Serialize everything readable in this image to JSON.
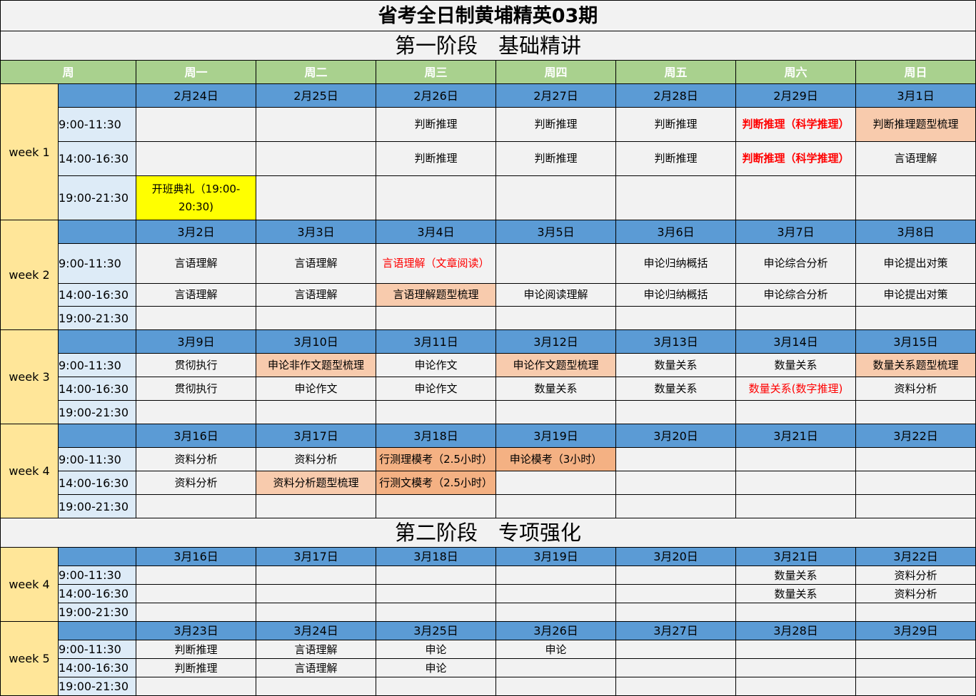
{
  "title": "省考全日制黄埔精英03期",
  "header": {
    "week_col": "周",
    "days": [
      "周一",
      "周二",
      "周三",
      "周四",
      "周五",
      "周六",
      "周日"
    ]
  },
  "phases": [
    {
      "title": "第一阶段　基础精讲",
      "weeks": [
        {
          "label": "week  1",
          "dates": [
            "2月24日",
            "2月25日",
            "2月26日",
            "2月27日",
            "2月28日",
            "2月29日",
            "3月1日"
          ],
          "slots": [
            {
              "time": "9:00-11:30",
              "cells": [
                {
                  "t": ""
                },
                {
                  "t": ""
                },
                {
                  "t": "判断推理"
                },
                {
                  "t": "判断推理"
                },
                {
                  "t": "判断推理"
                },
                {
                  "t": "判断推理（科学推理）",
                  "s": "rb"
                },
                {
                  "t": "判断推理题型梳理",
                  "s": "p"
                }
              ]
            },
            {
              "time": "14:00-16:30",
              "cells": [
                {
                  "t": ""
                },
                {
                  "t": ""
                },
                {
                  "t": "判断推理"
                },
                {
                  "t": "判断推理"
                },
                {
                  "t": "判断推理"
                },
                {
                  "t": "判断推理（科学推理）",
                  "s": "rb"
                },
                {
                  "t": "言语理解"
                }
              ]
            },
            {
              "time": "19:00-21:30",
              "cells": [
                {
                  "t": "开班典礼（19:00-20:30)",
                  "s": "y"
                },
                {
                  "t": ""
                },
                {
                  "t": ""
                },
                {
                  "t": ""
                },
                {
                  "t": ""
                },
                {
                  "t": ""
                },
                {
                  "t": ""
                }
              ]
            }
          ]
        },
        {
          "label": "week  2",
          "dates": [
            "3月2日",
            "3月3日",
            "3月4日",
            "3月5日",
            "3月6日",
            "3月7日",
            "3月8日"
          ],
          "slots": [
            {
              "time": "9:00-11:30",
              "cells": [
                {
                  "t": "言语理解"
                },
                {
                  "t": "言语理解"
                },
                {
                  "t": "言语理解（文章阅读）",
                  "s": "r"
                },
                {
                  "t": ""
                },
                {
                  "t": "申论归纳概括"
                },
                {
                  "t": "申论综合分析"
                },
                {
                  "t": "申论提出对策"
                }
              ]
            },
            {
              "time": "14:00-16:30",
              "cells": [
                {
                  "t": "言语理解"
                },
                {
                  "t": "言语理解"
                },
                {
                  "t": "言语理解题型梳理",
                  "s": "p"
                },
                {
                  "t": "申论阅读理解"
                },
                {
                  "t": "申论归纳概括"
                },
                {
                  "t": "申论综合分析"
                },
                {
                  "t": "申论提出对策"
                }
              ]
            },
            {
              "time": "19:00-21:30",
              "cells": [
                {
                  "t": ""
                },
                {
                  "t": ""
                },
                {
                  "t": ""
                },
                {
                  "t": ""
                },
                {
                  "t": ""
                },
                {
                  "t": ""
                },
                {
                  "t": ""
                }
              ]
            }
          ]
        },
        {
          "label": "week  3",
          "dates": [
            "3月9日",
            "3月10日",
            "3月11日",
            "3月12日",
            "3月13日",
            "3月14日",
            "3月15日"
          ],
          "slots": [
            {
              "time": "9:00-11:30",
              "cells": [
                {
                  "t": "贯彻执行"
                },
                {
                  "t": "申论非作文题型梳理",
                  "s": "p"
                },
                {
                  "t": "申论作文"
                },
                {
                  "t": "申论作文题型梳理",
                  "s": "p"
                },
                {
                  "t": "数量关系"
                },
                {
                  "t": "数量关系"
                },
                {
                  "t": "数量关系题型梳理",
                  "s": "p"
                }
              ]
            },
            {
              "time": "14:00-16:30",
              "cells": [
                {
                  "t": "贯彻执行"
                },
                {
                  "t": "申论作文"
                },
                {
                  "t": "申论作文"
                },
                {
                  "t": "数量关系"
                },
                {
                  "t": "数量关系"
                },
                {
                  "t": "数量关系(数字推理)",
                  "s": "r"
                },
                {
                  "t": "资料分析"
                }
              ]
            },
            {
              "time": "19:00-21:30",
              "cells": [
                {
                  "t": ""
                },
                {
                  "t": ""
                },
                {
                  "t": ""
                },
                {
                  "t": ""
                },
                {
                  "t": ""
                },
                {
                  "t": ""
                },
                {
                  "t": ""
                }
              ]
            }
          ]
        },
        {
          "label": "week  4",
          "dates": [
            "3月16日",
            "3月17日",
            "3月18日",
            "3月19日",
            "3月20日",
            "3月21日",
            "3月22日"
          ],
          "slots": [
            {
              "time": "9:00-11:30",
              "cells": [
                {
                  "t": "资料分析"
                },
                {
                  "t": "资料分析"
                },
                {
                  "t": "行测理模考（2.5小时）",
                  "s": "o"
                },
                {
                  "t": "申论模考（3小时）",
                  "s": "o"
                },
                {
                  "t": ""
                },
                {
                  "t": ""
                },
                {
                  "t": ""
                }
              ]
            },
            {
              "time": "14:00-16:30",
              "cells": [
                {
                  "t": "资料分析"
                },
                {
                  "t": "资料分析题型梳理",
                  "s": "p"
                },
                {
                  "t": "行测文模考（2.5小时）",
                  "s": "o"
                },
                {
                  "t": ""
                },
                {
                  "t": ""
                },
                {
                  "t": ""
                },
                {
                  "t": ""
                }
              ]
            },
            {
              "time": "19:00-21:30",
              "cells": [
                {
                  "t": ""
                },
                {
                  "t": ""
                },
                {
                  "t": ""
                },
                {
                  "t": ""
                },
                {
                  "t": ""
                },
                {
                  "t": ""
                },
                {
                  "t": ""
                }
              ]
            }
          ]
        }
      ]
    },
    {
      "title": "第二阶段　专项强化",
      "weeks": [
        {
          "label": "week  4",
          "dates": [
            "3月16日",
            "3月17日",
            "3月18日",
            "3月19日",
            "3月20日",
            "3月21日",
            "3月22日"
          ],
          "slots": [
            {
              "time": "9:00-11:30",
              "cells": [
                {
                  "t": ""
                },
                {
                  "t": ""
                },
                {
                  "t": ""
                },
                {
                  "t": ""
                },
                {
                  "t": ""
                },
                {
                  "t": "数量关系"
                },
                {
                  "t": "资料分析"
                }
              ]
            },
            {
              "time": "14:00-16:30",
              "cells": [
                {
                  "t": ""
                },
                {
                  "t": ""
                },
                {
                  "t": ""
                },
                {
                  "t": ""
                },
                {
                  "t": ""
                },
                {
                  "t": "数量关系"
                },
                {
                  "t": "资料分析"
                }
              ]
            },
            {
              "time": "19:00-21:30",
              "cells": [
                {
                  "t": ""
                },
                {
                  "t": ""
                },
                {
                  "t": ""
                },
                {
                  "t": ""
                },
                {
                  "t": ""
                },
                {
                  "t": ""
                },
                {
                  "t": ""
                }
              ]
            }
          ]
        },
        {
          "label": "week  5",
          "dates": [
            "3月23日",
            "3月24日",
            "3月25日",
            "3月26日",
            "3月27日",
            "3月28日",
            "3月29日"
          ],
          "slots": [
            {
              "time": "9:00-11:30",
              "cells": [
                {
                  "t": "判断推理"
                },
                {
                  "t": "言语理解"
                },
                {
                  "t": "申论"
                },
                {
                  "t": "申论"
                },
                {
                  "t": ""
                },
                {
                  "t": ""
                },
                {
                  "t": ""
                }
              ]
            },
            {
              "time": "14:00-16:30",
              "cells": [
                {
                  "t": "判断推理"
                },
                {
                  "t": "言语理解"
                },
                {
                  "t": "申论"
                },
                {
                  "t": ""
                },
                {
                  "t": ""
                },
                {
                  "t": ""
                },
                {
                  "t": ""
                }
              ]
            },
            {
              "time": "19:00-21:30",
              "cells": [
                {
                  "t": ""
                },
                {
                  "t": ""
                },
                {
                  "t": ""
                },
                {
                  "t": ""
                },
                {
                  "t": ""
                },
                {
                  "t": ""
                },
                {
                  "t": ""
                }
              ]
            }
          ]
        }
      ]
    }
  ]
}
